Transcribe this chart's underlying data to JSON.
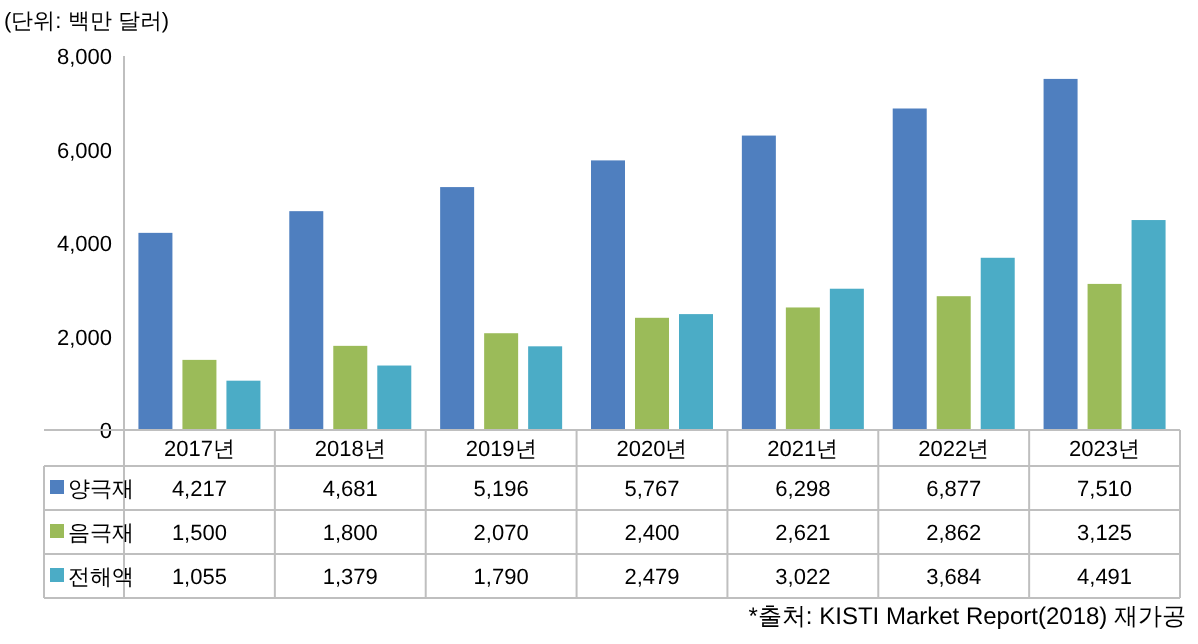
{
  "chart_data": {
    "type": "bar",
    "categories": [
      "2017년",
      "2018년",
      "2019년",
      "2020년",
      "2021년",
      "2022년",
      "2023년"
    ],
    "series": [
      {
        "name": "양극재",
        "color": "#4f7fbf",
        "values": [
          4217,
          4681,
          5196,
          5767,
          6298,
          6877,
          7510
        ],
        "value_labels": [
          "4,217",
          "4,681",
          "5,196",
          "5,767",
          "6,298",
          "6,877",
          "7,510"
        ]
      },
      {
        "name": "음극재",
        "color": "#9bbb59",
        "values": [
          1500,
          1800,
          2070,
          2400,
          2621,
          2862,
          3125
        ],
        "value_labels": [
          "1,500",
          "1,800",
          "2,070",
          "2,400",
          "2,621",
          "2,862",
          "3,125"
        ]
      },
      {
        "name": "전해액",
        "color": "#4bacc6",
        "values": [
          1055,
          1379,
          1790,
          2479,
          3022,
          3684,
          4491
        ],
        "value_labels": [
          "1,055",
          "1,379",
          "1,790",
          "2,479",
          "3,022",
          "3,684",
          "4,491"
        ]
      }
    ],
    "ylim": [
      0,
      8000
    ],
    "yticks": [
      {
        "value": 0,
        "label": "0"
      },
      {
        "value": 2000,
        "label": "2,000"
      },
      {
        "value": 4000,
        "label": "4,000"
      },
      {
        "value": 6000,
        "label": "6,000"
      },
      {
        "value": 8000,
        "label": "8,000"
      }
    ],
    "legend": "bottom left",
    "annotations": [
      "(단위: 백만 달러)",
      "*출처: KISTI Market Report(2018) 재가공"
    ]
  }
}
